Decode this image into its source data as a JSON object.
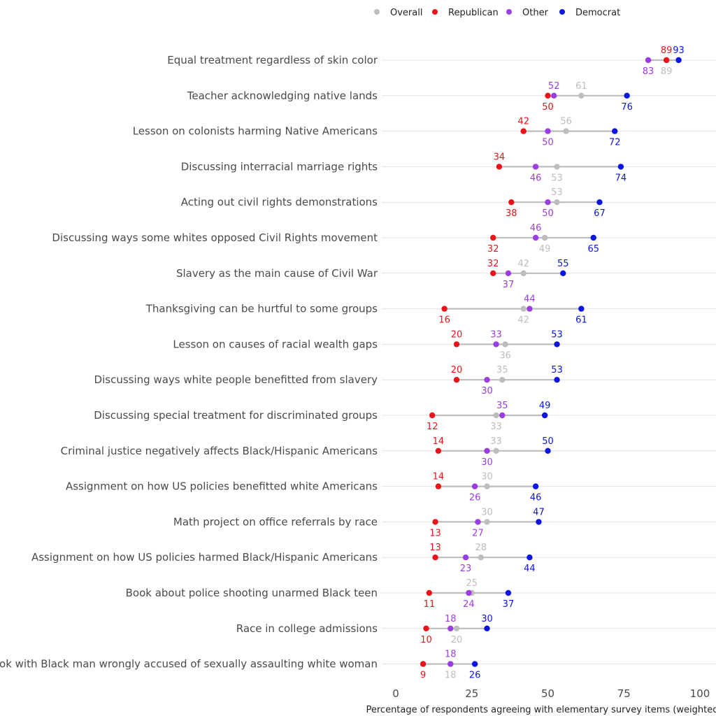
{
  "chart_data": {
    "type": "dot",
    "xlabel": "Percentage of respondents agreeing with elementary survey items (weighted)",
    "xlim": [
      0,
      100
    ],
    "xticks": [
      0,
      25,
      50,
      75,
      100
    ],
    "legend_position": "top",
    "series": [
      {
        "name": "Overall",
        "color": "#bdbdbd"
      },
      {
        "name": "Republican",
        "color": "#e8141a"
      },
      {
        "name": "Other",
        "color": "#9b3de0"
      },
      {
        "name": "Democrat",
        "color": "#0a16e0"
      }
    ],
    "categories": [
      "Equal treatment regardless of skin color",
      "Teacher acknowledging native lands",
      "Lesson on colonists harming Native Americans",
      "Discussing interracial marriage rights",
      "Acting out civil rights demonstrations",
      "Discussing ways some  whites opposed Civil Rights movement",
      "Slavery as the main cause of Civil War",
      "Thanksgiving can be hurtful to some groups",
      "Lesson on causes of racial wealth gaps",
      "Discussing ways  white people benefitted from slavery",
      "Discussing special treatment for discriminated groups",
      "Criminal justice negatively affects Black/Hispanic Americans",
      "Assignment on how US policies benefitted  white Americans",
      "Math project on office referrals by race",
      "Assignment on how US policies harmed Black/Hispanic Americans",
      "Book about police shooting unarmed Black teen",
      "Race in college admissions",
      "Book with Black man wrongly accused of sexually assaulting  white woman"
    ],
    "values": {
      "Overall": [
        89,
        61,
        56,
        53,
        53,
        49,
        42,
        42,
        36,
        35,
        33,
        33,
        30,
        30,
        28,
        25,
        20,
        18
      ],
      "Republican": [
        89,
        50,
        42,
        34,
        38,
        32,
        32,
        16,
        20,
        20,
        12,
        14,
        14,
        13,
        13,
        11,
        10,
        9
      ],
      "Other": [
        83,
        52,
        50,
        46,
        50,
        46,
        37,
        44,
        33,
        30,
        35,
        30,
        26,
        27,
        23,
        24,
        18,
        18
      ],
      "Democrat": [
        93,
        76,
        72,
        74,
        67,
        65,
        55,
        61,
        53,
        53,
        49,
        50,
        46,
        47,
        44,
        37,
        30,
        26
      ]
    },
    "label_position": {
      "Overall": [
        "below",
        "above",
        "above",
        "below",
        "above",
        "below",
        "above",
        "below",
        "below",
        "above",
        "below",
        "above",
        "above",
        "above",
        "above",
        "above",
        "below",
        "below"
      ],
      "Republican": [
        "above",
        "below",
        "above",
        "above",
        "below",
        "below",
        "above",
        "below",
        "above",
        "above",
        "below",
        "above",
        "above",
        "below",
        "above",
        "below",
        "below",
        "below"
      ],
      "Other": [
        "below",
        "above",
        "below",
        "below",
        "below",
        "above",
        "below",
        "above",
        "above",
        "below",
        "above",
        "below",
        "below",
        "below",
        "below",
        "below",
        "above",
        "above"
      ],
      "Democrat": [
        "above",
        "below",
        "below",
        "below",
        "below",
        "below",
        "above",
        "below",
        "above",
        "above",
        "above",
        "above",
        "below",
        "above",
        "below",
        "below",
        "above",
        "below"
      ]
    }
  }
}
